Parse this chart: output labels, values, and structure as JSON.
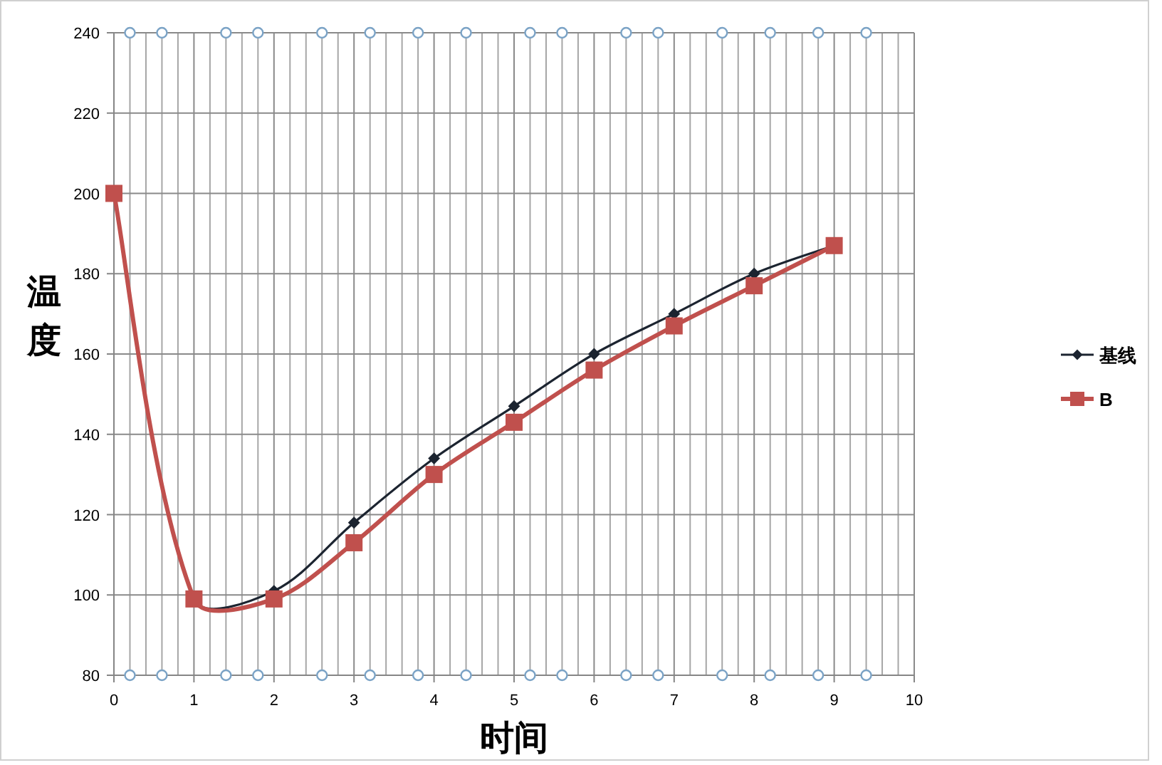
{
  "chart_data": {
    "type": "line",
    "xlabel": "时间",
    "ylabel": "温度",
    "xlim": [
      0,
      10
    ],
    "xticks": [
      0,
      {
        "value": 0.2,
        "label": null
      },
      {
        "value": 0.4,
        "label": null
      },
      {
        "value": 0.6,
        "label": null
      },
      {
        "value": 0.8,
        "label": null
      },
      1,
      {
        "value": 1.2,
        "label": null
      },
      {
        "value": 1.4,
        "label": null
      },
      {
        "value": 1.6,
        "label": null
      },
      {
        "value": 1.8,
        "label": null
      },
      2,
      {
        "value": 2.2,
        "label": null
      },
      {
        "value": 2.4,
        "label": null
      },
      {
        "value": 2.6,
        "label": null
      },
      {
        "value": 2.8,
        "label": null
      },
      3,
      {
        "value": 3.2,
        "label": null
      },
      {
        "value": 3.4,
        "label": null
      },
      {
        "value": 3.6,
        "label": null
      },
      {
        "value": 3.8,
        "label": null
      },
      4,
      {
        "value": 4.2,
        "label": null
      },
      {
        "value": 4.4,
        "label": null
      },
      {
        "value": 4.6,
        "label": null
      },
      {
        "value": 4.8,
        "label": null
      },
      5,
      {
        "value": 5.2,
        "label": null
      },
      {
        "value": 5.4,
        "label": null
      },
      {
        "value": 5.6,
        "label": null
      },
      {
        "value": 5.8,
        "label": null
      },
      6,
      {
        "value": 6.2,
        "label": null
      },
      {
        "value": 6.4,
        "label": null
      },
      {
        "value": 6.6,
        "label": null
      },
      {
        "value": 6.8,
        "label": null
      },
      7,
      {
        "value": 7.2,
        "label": null
      },
      {
        "value": 7.4,
        "label": null
      },
      {
        "value": 7.6,
        "label": null
      },
      {
        "value": 7.8,
        "label": null
      },
      8,
      {
        "value": 8.2,
        "label": null
      },
      {
        "value": 8.4,
        "label": null
      },
      {
        "value": 8.6,
        "label": null
      },
      {
        "value": 8.8,
        "label": null
      },
      9,
      {
        "value": 9.2,
        "label": null
      },
      {
        "value": 9.4,
        "label": null
      },
      {
        "value": 9.6,
        "label": null
      },
      {
        "value": 9.8,
        "label": null
      },
      10
    ],
    "ylim": [
      80,
      240
    ],
    "yticks": [
      80,
      100,
      120,
      140,
      160,
      180,
      200,
      220,
      240
    ],
    "grid": true,
    "legend": "right",
    "series": [
      {
        "name": "基线",
        "color": "#1c2430",
        "marker": "diamond",
        "x": [
          0,
          1,
          2,
          3,
          4,
          5,
          6,
          7,
          8,
          9
        ],
        "values": [
          200,
          99,
          101,
          118,
          134,
          147,
          160,
          170,
          180,
          187
        ]
      },
      {
        "name": "B",
        "color": "#c0504d",
        "marker": "square",
        "x": [
          0,
          1,
          2,
          3,
          4,
          5,
          6,
          7,
          8,
          9
        ],
        "values": [
          200,
          99,
          99,
          113,
          130,
          143,
          156,
          167,
          177,
          187
        ]
      },
      {
        "type": "scatter",
        "color": "#7ba3c6",
        "marker": "circle",
        "x": [
          0.2,
          0.6,
          1.4,
          1.8,
          2.6,
          3.2,
          3.8,
          4.4,
          5.2,
          5.6,
          6.4,
          6.8,
          7.6,
          8.2,
          8.8,
          9.4,
          0.2,
          0.6,
          1.4,
          1.8,
          2.6,
          3.2,
          3.8,
          4.4,
          5.2,
          5.6,
          6.4,
          6.8,
          7.6,
          8.2,
          8.8,
          9.4
        ],
        "values": [
          240,
          240,
          240,
          240,
          240,
          240,
          240,
          240,
          240,
          240,
          240,
          240,
          240,
          240,
          240,
          240,
          80,
          80,
          80,
          80,
          80,
          80,
          80,
          80,
          80,
          80,
          80,
          80,
          80,
          80,
          80,
          80
        ]
      }
    ]
  }
}
